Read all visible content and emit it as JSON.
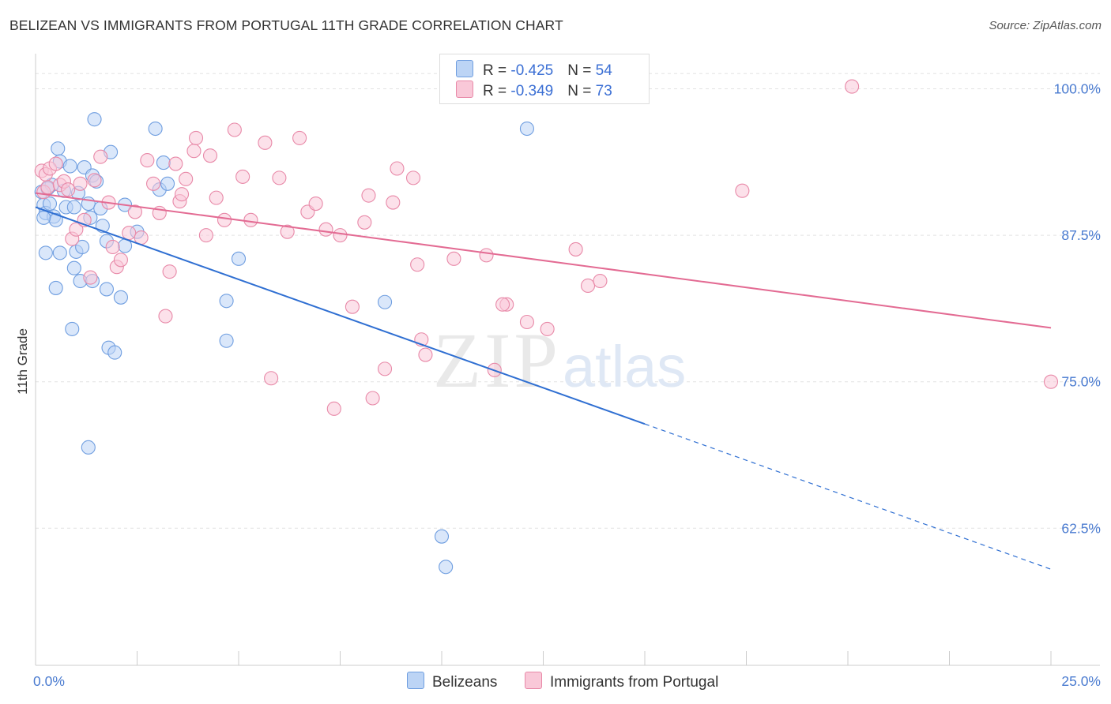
{
  "header": {
    "title": "BELIZEAN VS IMMIGRANTS FROM PORTUGAL 11TH GRADE CORRELATION CHART",
    "source": "Source: ZipAtlas.com"
  },
  "watermark": {
    "zip": "ZIP",
    "atlas": "atlas"
  },
  "legend": {
    "belizeans": {
      "r_label": "R = ",
      "r_value": "-0.425",
      "n_label": "N = ",
      "n_value": "54"
    },
    "portugal": {
      "r_label": "R = ",
      "r_value": "-0.349",
      "n_label": "N = ",
      "n_value": "73"
    }
  },
  "bottom_legend": {
    "belizeans": "Belizeans",
    "portugal": "Immigrants from Portugal"
  },
  "colors": {
    "blue_fill": "#bcd4f5",
    "blue_stroke": "#6f9ee0",
    "blue_line": "#2f6fd2",
    "pink_fill": "#f9c8d8",
    "pink_stroke": "#e889a8",
    "pink_line": "#e36b93",
    "grid": "#e2e2e2",
    "tick_label": "#4a7bd0"
  },
  "chart_data": {
    "type": "scatter",
    "title": "BELIZEAN VS IMMIGRANTS FROM PORTUGAL 11TH GRADE CORRELATION CHART",
    "xlabel": "",
    "ylabel": "11th Grade",
    "xlim": [
      0,
      25
    ],
    "ylim": [
      50.8,
      103
    ],
    "x_tick_labels": [
      {
        "value": 0,
        "label": "0.0%"
      },
      {
        "value": 25,
        "label": "25.0%"
      }
    ],
    "y_tick_labels": [
      {
        "value": 100,
        "label": "100.0%"
      },
      {
        "value": 87.5,
        "label": "87.5%"
      },
      {
        "value": 75,
        "label": "75.0%"
      },
      {
        "value": 62.5,
        "label": "62.5%"
      }
    ],
    "grid": true,
    "legend_position": "top-center",
    "series": [
      {
        "name": "Belizeans",
        "color": "#6f9ee0",
        "points": [
          [
            0.15,
            91.2
          ],
          [
            0.2,
            90.1
          ],
          [
            0.25,
            89.4
          ],
          [
            0.35,
            90.2
          ],
          [
            0.4,
            91.8
          ],
          [
            0.45,
            89.1
          ],
          [
            0.5,
            88.8
          ],
          [
            0.55,
            94.9
          ],
          [
            0.6,
            93.8
          ],
          [
            0.7,
            91.3
          ],
          [
            0.75,
            89.9
          ],
          [
            0.85,
            93.4
          ],
          [
            0.95,
            89.9
          ],
          [
            1.05,
            91.1
          ],
          [
            1.2,
            93.3
          ],
          [
            1.3,
            90.2
          ],
          [
            1.35,
            89.0
          ],
          [
            1.4,
            92.6
          ],
          [
            1.45,
            97.4
          ],
          [
            1.5,
            92.1
          ],
          [
            1.6,
            89.8
          ],
          [
            1.65,
            88.3
          ],
          [
            1.75,
            87.0
          ],
          [
            1.85,
            94.6
          ],
          [
            2.2,
            90.1
          ],
          [
            2.5,
            87.8
          ],
          [
            2.95,
            96.6
          ],
          [
            3.05,
            91.4
          ],
          [
            3.15,
            93.7
          ],
          [
            3.25,
            91.9
          ],
          [
            0.25,
            86.0
          ],
          [
            0.6,
            86.0
          ],
          [
            0.5,
            83.0
          ],
          [
            1.0,
            86.1
          ],
          [
            1.15,
            86.5
          ],
          [
            1.1,
            83.6
          ],
          [
            1.4,
            83.6
          ],
          [
            1.75,
            82.9
          ],
          [
            2.1,
            82.2
          ],
          [
            2.2,
            86.6
          ],
          [
            0.9,
            79.5
          ],
          [
            1.8,
            77.9
          ],
          [
            1.95,
            77.5
          ],
          [
            1.3,
            69.4
          ],
          [
            5.0,
            85.5
          ],
          [
            4.7,
            81.9
          ],
          [
            4.7,
            78.5
          ],
          [
            8.6,
            81.8
          ],
          [
            10.0,
            61.8
          ],
          [
            10.1,
            59.2
          ],
          [
            12.1,
            96.6
          ],
          [
            0.95,
            84.7
          ],
          [
            0.2,
            89.0
          ],
          [
            0.3,
            91.5
          ]
        ]
      },
      {
        "name": "Immigrants from Portugal",
        "color": "#e889a8",
        "points": [
          [
            0.15,
            93.0
          ],
          [
            0.2,
            91.2
          ],
          [
            0.25,
            92.7
          ],
          [
            0.3,
            91.6
          ],
          [
            0.35,
            93.2
          ],
          [
            0.5,
            93.6
          ],
          [
            0.6,
            91.8
          ],
          [
            0.7,
            92.1
          ],
          [
            0.8,
            91.4
          ],
          [
            0.9,
            87.2
          ],
          [
            1.0,
            88.0
          ],
          [
            1.1,
            91.9
          ],
          [
            1.2,
            88.8
          ],
          [
            1.35,
            83.9
          ],
          [
            1.45,
            92.2
          ],
          [
            1.6,
            94.2
          ],
          [
            1.8,
            90.3
          ],
          [
            1.9,
            86.5
          ],
          [
            2.0,
            84.8
          ],
          [
            2.1,
            85.4
          ],
          [
            2.3,
            87.7
          ],
          [
            2.45,
            89.5
          ],
          [
            2.6,
            87.3
          ],
          [
            2.75,
            93.9
          ],
          [
            2.9,
            91.9
          ],
          [
            3.05,
            89.4
          ],
          [
            3.2,
            80.6
          ],
          [
            3.3,
            84.4
          ],
          [
            3.45,
            93.6
          ],
          [
            3.55,
            90.4
          ],
          [
            3.6,
            91.0
          ],
          [
            3.7,
            92.3
          ],
          [
            3.9,
            94.7
          ],
          [
            3.95,
            95.8
          ],
          [
            4.2,
            87.5
          ],
          [
            4.3,
            94.3
          ],
          [
            4.45,
            90.7
          ],
          [
            4.65,
            88.8
          ],
          [
            4.9,
            96.5
          ],
          [
            5.1,
            92.5
          ],
          [
            5.3,
            88.8
          ],
          [
            5.65,
            95.4
          ],
          [
            5.8,
            75.3
          ],
          [
            6.0,
            92.4
          ],
          [
            6.2,
            87.8
          ],
          [
            6.5,
            95.8
          ],
          [
            6.7,
            89.5
          ],
          [
            6.9,
            90.2
          ],
          [
            7.15,
            88.0
          ],
          [
            7.35,
            72.7
          ],
          [
            7.5,
            87.5
          ],
          [
            7.8,
            81.4
          ],
          [
            8.1,
            88.6
          ],
          [
            8.2,
            90.9
          ],
          [
            8.3,
            73.6
          ],
          [
            8.6,
            76.1
          ],
          [
            8.8,
            90.3
          ],
          [
            8.9,
            93.2
          ],
          [
            9.3,
            92.4
          ],
          [
            9.4,
            85.0
          ],
          [
            9.5,
            78.6
          ],
          [
            9.6,
            77.3
          ],
          [
            10.3,
            85.5
          ],
          [
            11.1,
            85.8
          ],
          [
            11.6,
            81.6
          ],
          [
            11.5,
            81.6
          ],
          [
            11.3,
            76.0
          ],
          [
            12.1,
            80.1
          ],
          [
            12.6,
            79.5
          ],
          [
            13.3,
            86.3
          ],
          [
            13.6,
            83.2
          ],
          [
            13.9,
            83.6
          ],
          [
            17.4,
            91.3
          ]
        ]
      }
    ],
    "trend_lines": [
      {
        "name": "Belizeans",
        "solid": {
          "from": [
            0,
            89.9
          ],
          "to": [
            15,
            71.4
          ]
        },
        "dashed": {
          "from": [
            15,
            71.4
          ],
          "to": [
            25,
            59.0
          ]
        }
      },
      {
        "name": "Immigrants from Portugal",
        "solid": {
          "from": [
            0,
            91.1
          ],
          "to": [
            25,
            79.6
          ]
        }
      }
    ],
    "extra_points_top": [
      [
        13.9,
        100.1
      ],
      [
        20.1,
        100.2
      ],
      [
        25.0,
        75.0
      ]
    ]
  }
}
